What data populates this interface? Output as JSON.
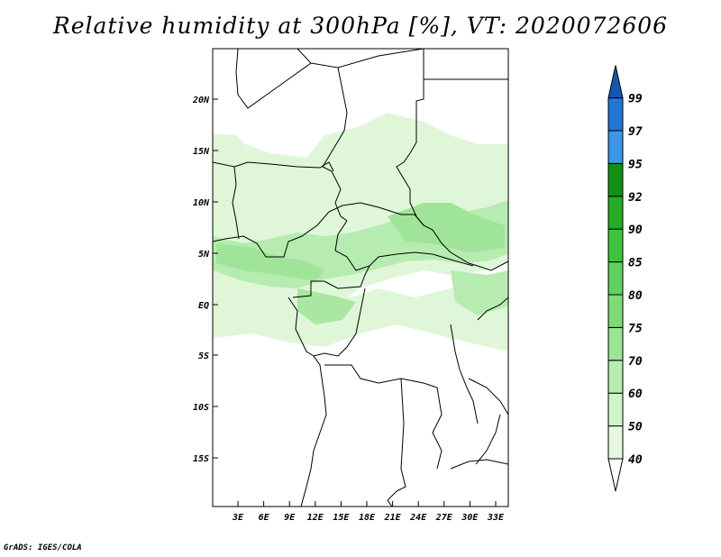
{
  "title": "Relative humidity at 300hPa [%], VT: 2020072606",
  "footer": "GrADS: IGES/COLA",
  "map": {
    "lon_labels": [
      "3E",
      "6E",
      "9E",
      "12E",
      "15E",
      "18E",
      "21E",
      "24E",
      "27E",
      "30E",
      "33E"
    ],
    "lat_labels": [
      "20N",
      "15N",
      "10N",
      "5N",
      "EQ",
      "5S",
      "10S",
      "15S"
    ]
  },
  "colorbar": {
    "levels": [
      "40",
      "50",
      "60",
      "70",
      "75",
      "80",
      "85",
      "90",
      "92",
      "95",
      "97",
      "99"
    ],
    "colors": [
      "#e6f8e1",
      "#d2f4cb",
      "#b8edb0",
      "#9ce496",
      "#7fdb7a",
      "#5fd15e",
      "#3fc33f",
      "#25ac25",
      "#138f13",
      "#3d97e6",
      "#2276d6",
      "#1556b0"
    ]
  },
  "colors": {
    "coast": "#000000",
    "field_light": "#d9f5d2",
    "field_mid": "#a7e8a0",
    "field_strong": "#7fda79"
  }
}
